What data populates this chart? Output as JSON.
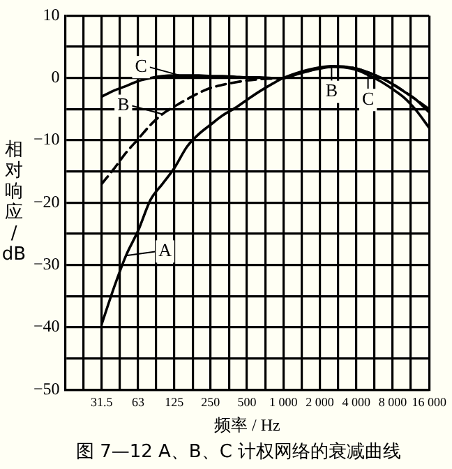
{
  "chart_data": {
    "type": "line",
    "title": "图 7—12 A、B、C 计权网络的衰减曲线",
    "xlabel": "频率 / Hz",
    "ylabel": "相对响应/dB",
    "log": "x",
    "grid": true,
    "marker": "none",
    "x": [
      31.5,
      40,
      50,
      63,
      80,
      100,
      125,
      160,
      200,
      250,
      315,
      400,
      500,
      630,
      800,
      1000,
      1250,
      1600,
      2000,
      2500,
      3150,
      4000,
      5000,
      6300,
      8000,
      10000,
      12500,
      16000
    ],
    "series": [
      {
        "color": "#000000",
        "line_style": "solid",
        "values": [
          -39.5,
          -33.5,
          -28.5,
          -24.5,
          -19.5,
          -17,
          -14.5,
          -11,
          -9,
          -7.5,
          -6,
          -4.8,
          -3.5,
          -2.2,
          -1,
          0,
          0.7,
          1.3,
          1.7,
          1.9,
          1.8,
          1.5,
          0.9,
          0.1,
          -1,
          -2.2,
          -3.5,
          -5.5
        ]
      },
      {
        "color": "#000000",
        "line_style": "dashed",
        "values": [
          -17,
          -14.5,
          -12,
          -9.8,
          -7.5,
          -5.8,
          -4.6,
          -3.4,
          -2.4,
          -1.6,
          -1.1,
          -0.7,
          -0.4,
          -0.2,
          -0.1,
          0,
          0.6,
          1.1,
          1.6,
          1.8,
          1.8,
          1.5,
          0.9,
          0.1,
          -1,
          -2.2,
          -3.5,
          -5
        ]
      },
      {
        "color": "#000000",
        "line_style": "solid",
        "values": [
          -3,
          -2,
          -1.3,
          -0.5,
          0,
          0.3,
          0.4,
          0.4,
          0.4,
          0.3,
          0.3,
          0.2,
          0.1,
          0.1,
          0,
          0,
          0.5,
          1.1,
          1.5,
          1.8,
          1.7,
          1.3,
          0.5,
          -0.5,
          -1.8,
          -3.2,
          -5.2,
          -8
        ]
      }
    ],
    "xlim": [
      15.75,
      16000
    ],
    "xticks": [
      {
        "value": 22.3,
        "label": null
      },
      {
        "value": 31.5,
        "label": "31.5"
      },
      {
        "value": 44.5,
        "label": null
      },
      {
        "value": 63,
        "label": "63"
      },
      {
        "value": 89,
        "label": null
      },
      {
        "value": 125,
        "label": "125"
      },
      {
        "value": 178,
        "label": null
      },
      {
        "value": 250,
        "label": "250"
      },
      {
        "value": 355,
        "label": null
      },
      {
        "value": 500,
        "label": "500"
      },
      {
        "value": 710,
        "label": null
      },
      {
        "value": 1000,
        "label": "1 000"
      },
      {
        "value": 1420,
        "label": null
      },
      {
        "value": 2000,
        "label": "2 000"
      },
      {
        "value": 2840,
        "label": null
      },
      {
        "value": 4000,
        "label": "4 000"
      },
      {
        "value": 5660,
        "label": null
      },
      {
        "value": 8000,
        "label": "8 000"
      },
      {
        "value": 11300,
        "label": null
      },
      {
        "value": 16000,
        "label": "16 000"
      }
    ],
    "ylim": [
      -50,
      10
    ],
    "yticks": [
      -50,
      {
        "value": -45,
        "label": null
      },
      -40,
      {
        "value": -35,
        "label": null
      },
      -30,
      {
        "value": -25,
        "label": null
      },
      -20,
      {
        "value": -15,
        "label": null
      },
      -10,
      {
        "value": -5,
        "label": null
      },
      0,
      {
        "value": 5,
        "label": null
      },
      10
    ],
    "annotations": [
      {
        "text": "A",
        "x": 50,
        "y": -28.5
      },
      {
        "text": "B",
        "x": 100,
        "y": -5.8
      },
      {
        "text": "C",
        "x": 140,
        "y": 0.4
      },
      {
        "text": "B",
        "x": 2500,
        "y": 1.8
      },
      {
        "text": "C",
        "x": 5000,
        "y": 0.5
      }
    ]
  }
}
